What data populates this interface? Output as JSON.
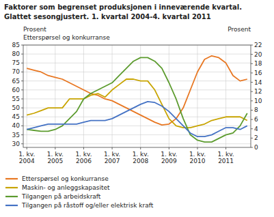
{
  "chart_data": {
    "type": "line",
    "title": "Faktorer som begrenset produksjonen i inneværende kvartal.",
    "subtitle": "Glattet sesongjustert. 1. kvartal 2004-4. kvartal 2011",
    "y_label": [
      "Prosent",
      "Etterspørsel og konkurranse"
    ],
    "y2_label": "Prosent",
    "categories": [
      "1. kv.\n2004",
      null,
      null,
      null,
      "1. kv.\n2005",
      null,
      null,
      null,
      "1. kv.\n2006",
      null,
      null,
      null,
      "1. kv.\n2007",
      null,
      null,
      null,
      "1. kv.\n2008",
      null,
      null,
      null,
      "1. kv.\n2009",
      null,
      null,
      null,
      "1. kv.\n2010",
      null,
      null,
      null,
      "1. kv.\n2011",
      null,
      null,
      null
    ],
    "series": [
      {
        "name": "Etterspørsel og konkurranse",
        "color": "#E87722",
        "values": [
          72,
          71,
          70,
          68,
          67,
          66,
          64,
          62,
          60,
          58,
          57,
          55,
          54,
          52,
          50,
          48,
          46,
          44,
          42,
          40.5,
          41,
          44,
          50,
          60,
          70,
          77,
          79,
          78,
          75,
          68,
          65,
          66
        ]
      },
      {
        "name": "Maskin- og anleggskapasitet",
        "color": "#C8A400",
        "values": [
          46,
          47,
          48.5,
          50,
          50,
          50,
          55,
          55,
          55,
          57,
          58,
          56,
          60,
          63,
          66,
          66,
          65,
          65,
          60,
          52,
          44,
          40,
          39,
          39,
          40,
          41,
          43,
          44,
          45,
          45,
          45,
          43
        ]
      },
      {
        "name": "Tilgangen på arbeidskraft",
        "color": "#5C9B2E",
        "values": [
          38,
          37.5,
          37,
          37,
          38,
          40,
          44,
          48,
          55,
          58,
          60,
          62,
          64,
          68,
          72,
          76,
          78,
          78,
          76,
          72,
          64,
          55,
          44,
          35,
          32,
          31,
          31,
          33,
          35,
          36,
          40,
          47
        ]
      },
      {
        "name": "Tilgangen på råstoff og/eller elektrisk kraft",
        "color": "#4472C4",
        "values": [
          38,
          39,
          40,
          41,
          41,
          41,
          41,
          41,
          42,
          43,
          43,
          43,
          44,
          46,
          48,
          50,
          52,
          53.5,
          53,
          51,
          48,
          44,
          40,
          36,
          34,
          34,
          35,
          37,
          39,
          39,
          38,
          40
        ]
      }
    ],
    "ylim": [
      28,
      85
    ],
    "yticks": [
      30,
      35,
      40,
      45,
      50,
      55,
      60,
      65,
      70,
      75,
      80,
      85
    ],
    "y2lim": [
      0,
      22
    ],
    "y2ticks": [
      0,
      2,
      4,
      6,
      8,
      10,
      12,
      14,
      16,
      18,
      20,
      22
    ],
    "grid": true,
    "legend": "bottom"
  }
}
